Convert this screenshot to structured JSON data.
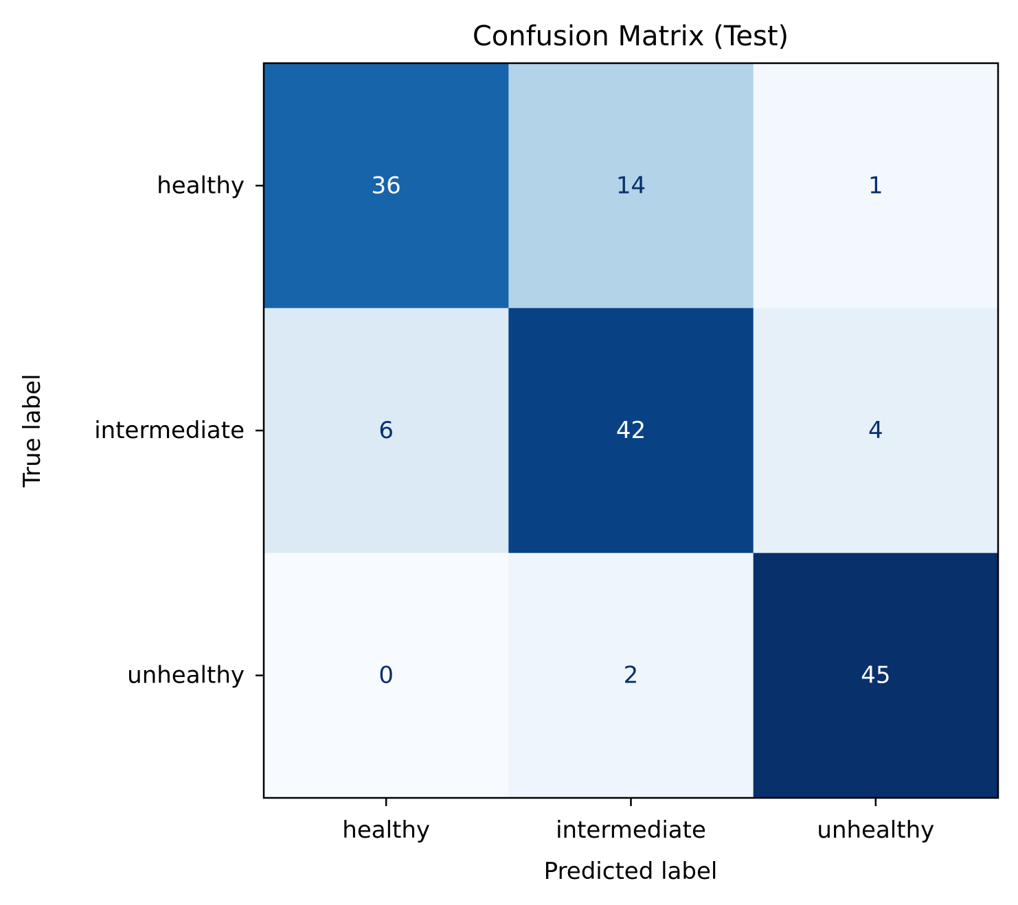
{
  "chart_data": {
    "type": "heatmap",
    "title": "Confusion Matrix (Test)",
    "xlabel": "Predicted label",
    "ylabel": "True label",
    "x_categories": [
      "healthy",
      "intermediate",
      "unhealthy"
    ],
    "y_categories": [
      "healthy",
      "intermediate",
      "unhealthy"
    ],
    "values": [
      [
        36,
        14,
        1
      ],
      [
        6,
        42,
        4
      ],
      [
        0,
        2,
        45
      ]
    ],
    "colormap": "Blues",
    "colorbar": false,
    "grid": false
  }
}
